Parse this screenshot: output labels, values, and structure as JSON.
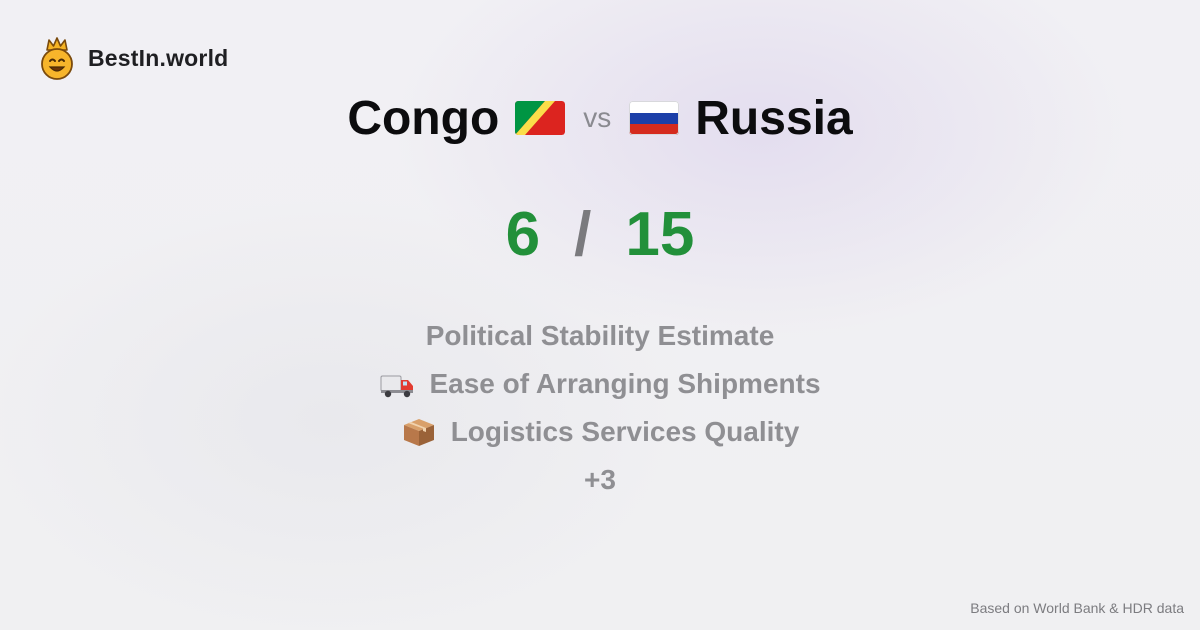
{
  "brand": {
    "name": "BestIn.world",
    "logo_icon": "crowned-smiley-icon"
  },
  "comparison": {
    "left_country": "Congo",
    "left_flag": "congo-flag-icon",
    "vs_label": "vs",
    "right_country": "Russia",
    "right_flag": "russia-flag-icon"
  },
  "score": {
    "left": "6",
    "separator": "/",
    "right": "15",
    "color": "#22903a"
  },
  "metrics": [
    {
      "label": "Political Stability Estimate",
      "icon": ""
    },
    {
      "label": "Ease of Arranging Shipments",
      "icon": "delivery-truck-icon"
    },
    {
      "label": "Logistics Services Quality",
      "icon": "package-box-icon"
    }
  ],
  "more_label": "+3",
  "footer": {
    "source": "Based on World Bank & HDR data"
  }
}
